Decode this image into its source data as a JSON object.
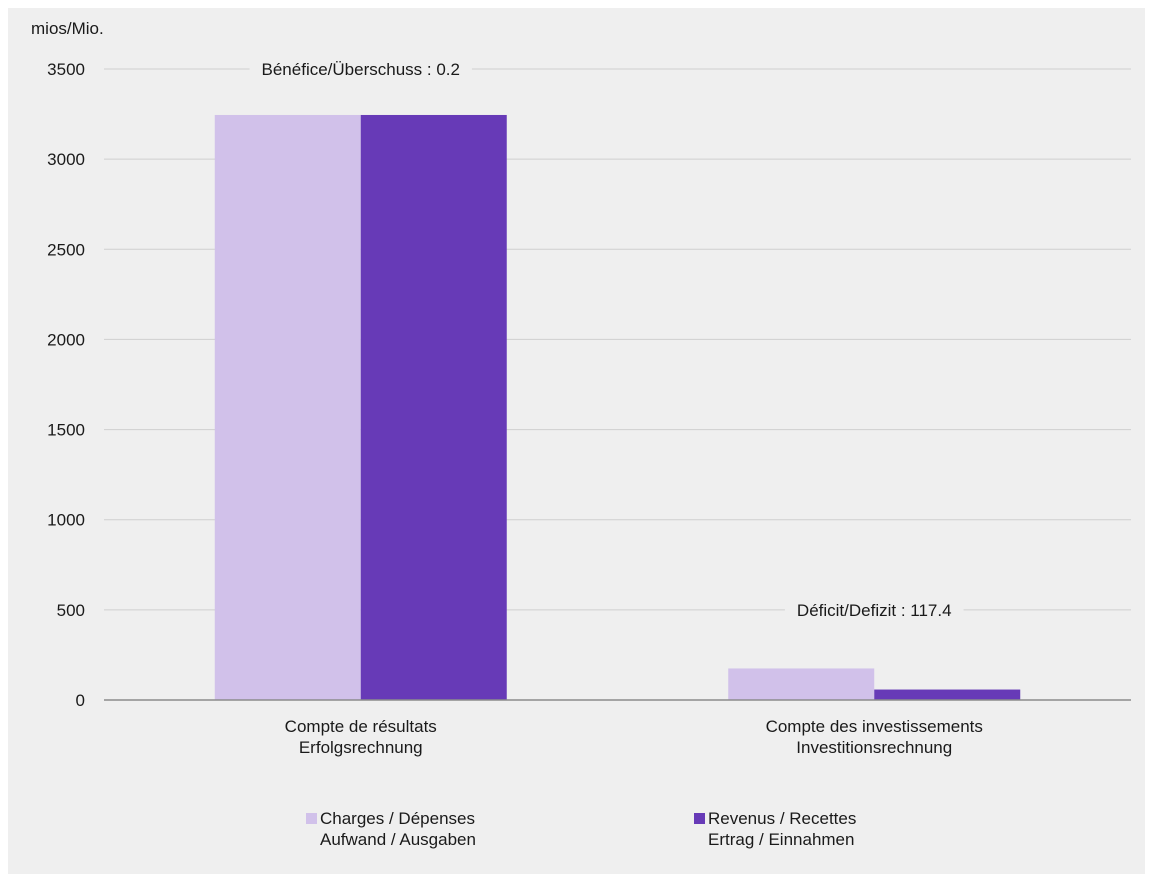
{
  "chart_data": {
    "type": "bar",
    "ylabel": "mios/Mio.",
    "ylim": [
      0,
      3500
    ],
    "yticks": [
      0,
      500,
      1000,
      1500,
      2000,
      2500,
      3000,
      3500
    ],
    "grid": true,
    "legend_position": "bottom",
    "categories": [
      [
        "Compte de résultats",
        "Erfolgsrechnung"
      ],
      [
        "Compte des investissements",
        "Investitionsrechnung"
      ]
    ],
    "series": [
      {
        "name": [
          "Charges / Dépenses",
          "Aufwand / Ausgaben"
        ],
        "color": "#d1c1ea",
        "values": [
          3245,
          175
        ]
      },
      {
        "name": [
          "Revenus / Recettes",
          "Ertrag / Einnahmen"
        ],
        "color": "#673ab7",
        "values": [
          3245,
          58
        ]
      }
    ],
    "annotations": [
      {
        "text": "Bénéfice/Überschuss :  0.2",
        "category": 0,
        "y": 3500
      },
      {
        "text": "Déficit/Defizit : 117.4",
        "category": 1,
        "y": 500
      }
    ]
  }
}
